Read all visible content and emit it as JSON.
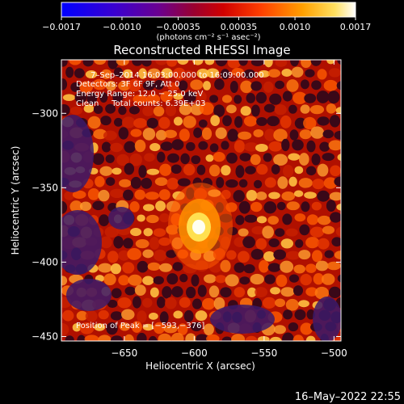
{
  "chart_data": {
    "type": "heatmap",
    "title": "Reconstructed RHESSI Image",
    "xlabel": "Heliocentric X (arcsec)",
    "ylabel": "Heliocentric Y (arcsec)",
    "xlim": [
      -695,
      -495
    ],
    "ylim": [
      -453,
      -264
    ],
    "xticks": [
      -650,
      -600,
      -550,
      -500
    ],
    "xtick_labels": [
      "−650",
      "−600",
      "−550",
      "−500"
    ],
    "yticks": [
      -300,
      -350,
      -400,
      -450
    ],
    "ytick_labels": [
      "−300",
      "−350",
      "−400",
      "−450"
    ],
    "colorbar": {
      "range": [
        -0.0017,
        0.0017
      ],
      "ticks": [
        -0.0017,
        -0.001,
        -0.00035,
        0.00035,
        0.001,
        0.0017
      ],
      "tick_labels": [
        "−0.0017",
        "−0.0010",
        "−0.00035",
        "0.00035",
        "0.0010",
        "0.0017"
      ],
      "unit_label": "(photons cm⁻² s⁻¹ asec⁻²)"
    },
    "annotations": {
      "time_range": "7–Sep–2014 16:03:00.000 to 16:09:00.000",
      "detectors": "Detectors: 3F 6F 9F, Att 0",
      "energy": "Energy Range: 12.0 − 25.0 keV",
      "clean": "Clean     Total counts: 6.39E+03",
      "peak": "Position of Peak = [−593,−376]"
    },
    "peak": {
      "x": -593,
      "y": -376
    },
    "colors": [
      "#0000ff",
      "#5a00aa",
      "#7a1060",
      "#b40000",
      "#e02000",
      "#ff6000",
      "#ffb000",
      "#ffff80",
      "#ffffff"
    ]
  },
  "footer": {
    "timestamp": "16–May–2022 22:55"
  }
}
